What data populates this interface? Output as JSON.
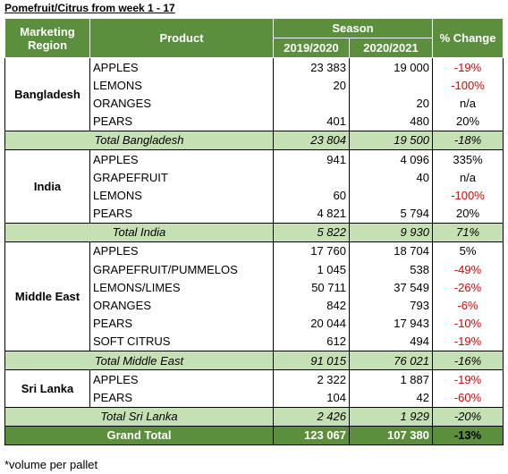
{
  "title": "Pomefruit/Citrus from week 1 - 17",
  "header": {
    "region": "Marketing Region",
    "product": "Product",
    "season": "Season",
    "seasons": [
      "2019/2020",
      "2020/2021"
    ],
    "change": "% Change"
  },
  "groups": [
    {
      "region": "Bangladesh",
      "rows": [
        {
          "product": "APPLES",
          "values": [
            "23 383",
            "19 000"
          ],
          "change": "-19%"
        },
        {
          "product": "LEMONS",
          "values": [
            "20",
            null
          ],
          "change": "-100%"
        },
        {
          "product": "ORANGES",
          "values": [
            null,
            "20"
          ],
          "change": "n/a"
        },
        {
          "product": "PEARS",
          "values": [
            "401",
            "480"
          ],
          "change": "20%"
        }
      ],
      "total": {
        "label": "Total Bangladesh",
        "values": [
          "23 804",
          "19 500"
        ],
        "change": "-18%"
      }
    },
    {
      "region": "India",
      "rows": [
        {
          "product": "APPLES",
          "values": [
            "941",
            "4 096"
          ],
          "change": "335%"
        },
        {
          "product": "GRAPEFRUIT",
          "values": [
            null,
            "40"
          ],
          "change": "n/a"
        },
        {
          "product": "LEMONS",
          "values": [
            "60",
            null
          ],
          "change": "-100%"
        },
        {
          "product": "PEARS",
          "values": [
            "4 821",
            "5 794"
          ],
          "change": "20%"
        }
      ],
      "total": {
        "label": "Total India",
        "values": [
          "5 822",
          "9 930"
        ],
        "change": "71%"
      }
    },
    {
      "region": "Middle East",
      "rows": [
        {
          "product": "APPLES",
          "values": [
            "17 760",
            "18 704"
          ],
          "change": "5%"
        },
        {
          "product": "GRAPEFRUIT/PUMMELOS",
          "values": [
            "1 045",
            "538"
          ],
          "change": "-49%"
        },
        {
          "product": "LEMONS/LIMES",
          "values": [
            "50 711",
            "37 549"
          ],
          "change": "-26%"
        },
        {
          "product": "ORANGES",
          "values": [
            "842",
            "793"
          ],
          "change": "-6%"
        },
        {
          "product": "PEARS",
          "values": [
            "20 044",
            "17 943"
          ],
          "change": "-10%"
        },
        {
          "product": "SOFT CITRUS",
          "values": [
            "612",
            "494"
          ],
          "change": "-19%"
        }
      ],
      "total": {
        "label": "Total Middle East",
        "values": [
          "91 015",
          "76 021"
        ],
        "change": "-16%"
      }
    },
    {
      "region": "Sri Lanka",
      "rows": [
        {
          "product": "APPLES",
          "values": [
            "2 322",
            "1 887"
          ],
          "change": "-19%"
        },
        {
          "product": "PEARS",
          "values": [
            "104",
            "42"
          ],
          "change": "-60%"
        }
      ],
      "total": {
        "label": "Total Sri Lanka",
        "values": [
          "2 426",
          "1 929"
        ],
        "change": "-20%"
      }
    }
  ],
  "grand_total": {
    "label": "Grand Total",
    "values": [
      "123 067",
      "107 380"
    ],
    "change": "-13%"
  },
  "footnote": "*volume per pallet"
}
